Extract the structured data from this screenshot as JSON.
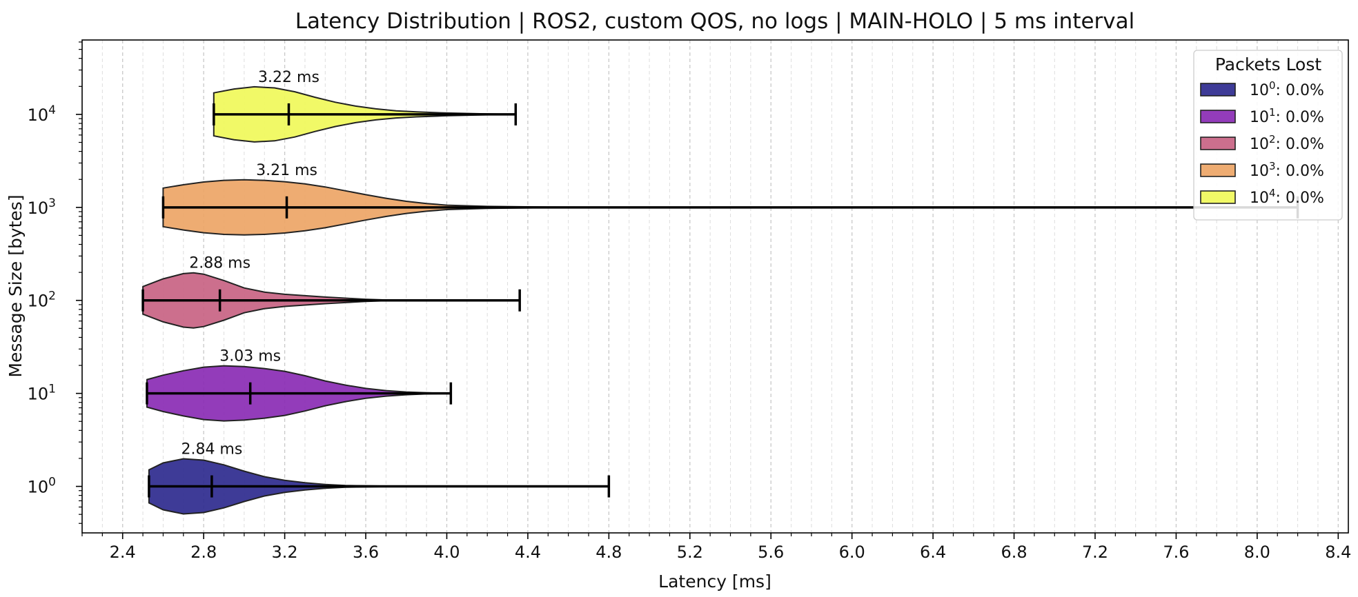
{
  "chart_data": {
    "type": "violin",
    "orientation": "horizontal",
    "title": "Latency Distribution | ROS2, custom QOS, no logs | MAIN-HOLO | 5 ms interval",
    "xlabel": "Latency [ms]",
    "ylabel": "Message Size [bytes]",
    "xlim": [
      2.2,
      8.45
    ],
    "x_ticks": [
      2.4,
      2.8,
      3.2,
      3.6,
      4.0,
      4.4,
      4.8,
      5.2,
      5.6,
      6.0,
      6.4,
      6.8,
      7.2,
      7.6,
      8.0,
      8.4
    ],
    "x_tick_labels": [
      "2.4",
      "2.8",
      "3.2",
      "3.6",
      "4.0",
      "4.4",
      "4.8",
      "5.2",
      "5.6",
      "6.0",
      "6.4",
      "6.8",
      "7.2",
      "7.6",
      "8.0",
      "8.4"
    ],
    "x_minor_step": 0.1,
    "y_scale": "log",
    "ylim_log10": [
      -0.5,
      4.8
    ],
    "y_ticks": [
      {
        "exp": 0,
        "base": "10",
        "sup": "0"
      },
      {
        "exp": 1,
        "base": "10",
        "sup": "1"
      },
      {
        "exp": 2,
        "base": "10",
        "sup": "2"
      },
      {
        "exp": 3,
        "base": "10",
        "sup": "3"
      },
      {
        "exp": 4,
        "base": "10",
        "sup": "4"
      }
    ],
    "grid": "x (major and minor, dashed)",
    "legend": {
      "title": "Packets Lost",
      "placement": "top-right"
    },
    "series": [
      {
        "name": "10^0: 0.0%",
        "legend_base": "10",
        "legend_sup": "0",
        "legend_suffix": ": 0.0%",
        "size_exp": 0,
        "min": 2.53,
        "max": 4.8,
        "median": 2.84,
        "median_label": "2.84 ms",
        "color": "#2e2a8e",
        "profile": [
          [
            2.53,
            0.6
          ],
          [
            2.6,
            0.85
          ],
          [
            2.7,
            1.0
          ],
          [
            2.8,
            0.95
          ],
          [
            2.9,
            0.78
          ],
          [
            3.0,
            0.55
          ],
          [
            3.1,
            0.35
          ],
          [
            3.2,
            0.22
          ],
          [
            3.3,
            0.13
          ],
          [
            3.4,
            0.07
          ],
          [
            3.5,
            0.03
          ],
          [
            3.7,
            0.01
          ],
          [
            4.0,
            0.004
          ],
          [
            4.5,
            0.0015
          ],
          [
            4.8,
            0.0
          ]
        ]
      },
      {
        "name": "10^1: 0.0%",
        "legend_base": "10",
        "legend_sup": "1",
        "legend_suffix": ": 0.0%",
        "size_exp": 1,
        "min": 2.52,
        "max": 4.02,
        "median": 3.03,
        "median_label": "3.03 ms",
        "color": "#8a2bb4",
        "profile": [
          [
            2.52,
            0.5
          ],
          [
            2.6,
            0.66
          ],
          [
            2.7,
            0.82
          ],
          [
            2.8,
            0.95
          ],
          [
            2.9,
            1.0
          ],
          [
            3.0,
            0.97
          ],
          [
            3.1,
            0.9
          ],
          [
            3.2,
            0.8
          ],
          [
            3.3,
            0.64
          ],
          [
            3.4,
            0.45
          ],
          [
            3.5,
            0.3
          ],
          [
            3.6,
            0.18
          ],
          [
            3.7,
            0.1
          ],
          [
            3.8,
            0.05
          ],
          [
            3.9,
            0.02
          ],
          [
            4.02,
            0.0
          ]
        ]
      },
      {
        "name": "10^2: 0.0%",
        "legend_base": "10",
        "legend_sup": "2",
        "legend_suffix": ": 0.0%",
        "size_exp": 2,
        "min": 2.5,
        "max": 4.36,
        "median": 2.88,
        "median_label": "2.88 ms",
        "color": "#c86383",
        "profile": [
          [
            2.5,
            0.5
          ],
          [
            2.6,
            0.78
          ],
          [
            2.7,
            0.97
          ],
          [
            2.75,
            1.0
          ],
          [
            2.8,
            0.95
          ],
          [
            2.9,
            0.72
          ],
          [
            3.0,
            0.45
          ],
          [
            3.1,
            0.3
          ],
          [
            3.2,
            0.22
          ],
          [
            3.3,
            0.17
          ],
          [
            3.4,
            0.12
          ],
          [
            3.5,
            0.08
          ],
          [
            3.6,
            0.04
          ],
          [
            3.7,
            0.015
          ],
          [
            4.0,
            0.005
          ],
          [
            4.36,
            0.0
          ]
        ]
      },
      {
        "name": "10^3: 0.0%",
        "legend_base": "10",
        "legend_sup": "3",
        "legend_suffix": ": 0.0%",
        "size_exp": 3,
        "min": 2.6,
        "max": 8.2,
        "median": 3.21,
        "median_label": "3.21 ms",
        "color": "#eda566",
        "profile": [
          [
            2.6,
            0.7
          ],
          [
            2.7,
            0.82
          ],
          [
            2.8,
            0.92
          ],
          [
            2.9,
            0.98
          ],
          [
            3.0,
            1.0
          ],
          [
            3.1,
            0.98
          ],
          [
            3.2,
            0.93
          ],
          [
            3.3,
            0.85
          ],
          [
            3.4,
            0.74
          ],
          [
            3.5,
            0.6
          ],
          [
            3.6,
            0.46
          ],
          [
            3.7,
            0.33
          ],
          [
            3.8,
            0.22
          ],
          [
            3.9,
            0.14
          ],
          [
            4.0,
            0.08
          ],
          [
            4.2,
            0.035
          ],
          [
            4.5,
            0.012
          ],
          [
            5.0,
            0.004
          ],
          [
            6.0,
            0.001
          ],
          [
            8.2,
            0.0
          ]
        ]
      },
      {
        "name": "10^4: 0.0%",
        "legend_base": "10",
        "legend_sup": "4",
        "legend_suffix": ": 0.0%",
        "size_exp": 4,
        "min": 2.85,
        "max": 4.34,
        "median": 3.22,
        "median_label": "3.22 ms",
        "color": "#f0f95a",
        "profile": [
          [
            2.85,
            0.78
          ],
          [
            2.95,
            0.92
          ],
          [
            3.05,
            1.0
          ],
          [
            3.15,
            0.96
          ],
          [
            3.25,
            0.82
          ],
          [
            3.35,
            0.62
          ],
          [
            3.45,
            0.44
          ],
          [
            3.55,
            0.3
          ],
          [
            3.65,
            0.2
          ],
          [
            3.75,
            0.13
          ],
          [
            3.85,
            0.09
          ],
          [
            4.0,
            0.05
          ],
          [
            4.2,
            0.015
          ],
          [
            4.34,
            0.0
          ]
        ]
      }
    ]
  }
}
